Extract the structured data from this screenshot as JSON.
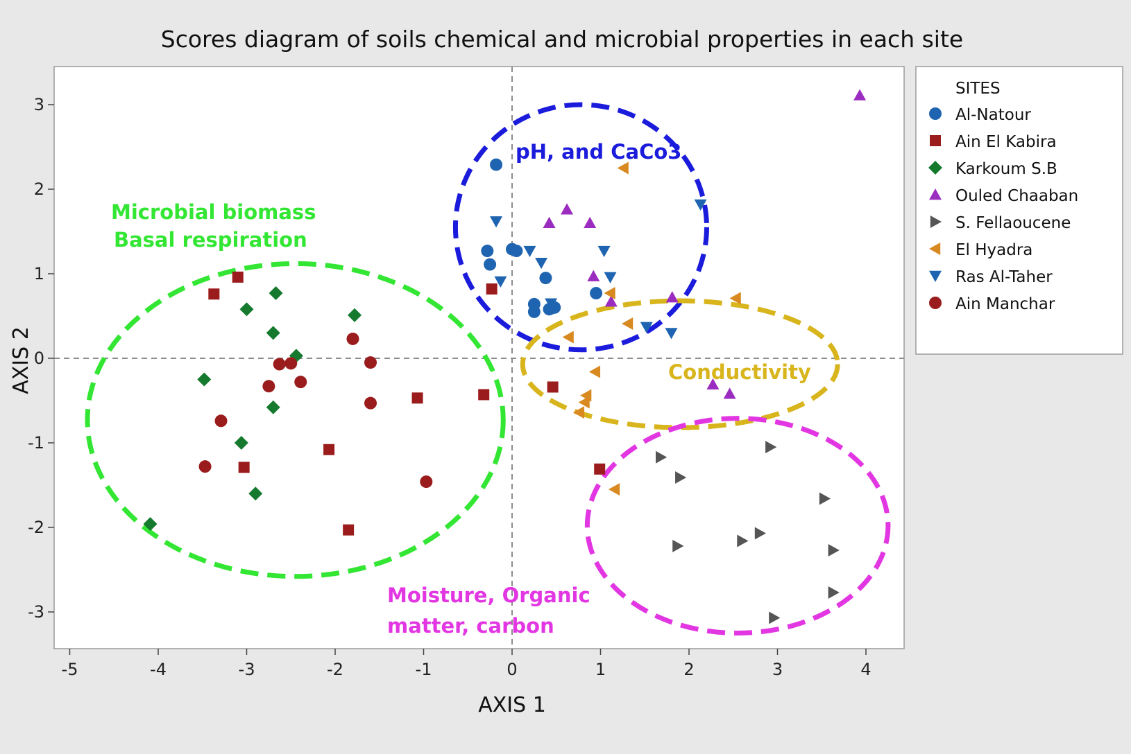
{
  "chart_data": {
    "type": "scatter",
    "title": "Scores diagram of soils chemical and microbial properties in each site",
    "xlabel": "AXIS 1",
    "ylabel": "AXIS 2",
    "xlim": [
      -5.2,
      4.4
    ],
    "ylim": [
      -3.4,
      3.45
    ],
    "xticks": [
      -5,
      -4,
      -3,
      -2,
      -1,
      0,
      1,
      2,
      3,
      4
    ],
    "yticks": [
      -3,
      -2,
      -1,
      0,
      1,
      2,
      3
    ],
    "reference_lines": {
      "x": 0,
      "y": 0,
      "style": "dashed"
    },
    "legend": {
      "title": "SITES",
      "placement": "right"
    },
    "series": [
      {
        "name": "Al-Natour",
        "marker": "circle",
        "color": "#1f64b0",
        "points": [
          [
            -0.18,
            2.29
          ],
          [
            -0.28,
            1.27
          ],
          [
            -0.25,
            1.11
          ],
          [
            0.0,
            1.29
          ],
          [
            0.05,
            1.27
          ],
          [
            0.38,
            0.95
          ],
          [
            0.25,
            0.64
          ],
          [
            0.25,
            0.55
          ],
          [
            0.42,
            0.58
          ],
          [
            0.48,
            0.6
          ],
          [
            0.95,
            0.77
          ]
        ]
      },
      {
        "name": "Ain El Kabira",
        "marker": "square",
        "color": "#9b1c1c",
        "points": [
          [
            -3.37,
            0.76
          ],
          [
            -3.1,
            0.96
          ],
          [
            -0.23,
            0.82
          ],
          [
            -0.32,
            -0.43
          ],
          [
            -1.07,
            -0.47
          ],
          [
            0.46,
            -0.34
          ],
          [
            -2.07,
            -1.08
          ],
          [
            -3.03,
            -1.29
          ],
          [
            -1.85,
            -2.03
          ],
          [
            0.99,
            -1.31
          ]
        ]
      },
      {
        "name": "Karkoum S.B",
        "marker": "diamond",
        "color": "#157a2e",
        "points": [
          [
            -2.67,
            0.77
          ],
          [
            -3.0,
            0.58
          ],
          [
            -1.78,
            0.51
          ],
          [
            -2.7,
            0.3
          ],
          [
            -2.44,
            0.03
          ],
          [
            -3.48,
            -0.25
          ],
          [
            -2.7,
            -0.58
          ],
          [
            -3.06,
            -1.0
          ],
          [
            -2.9,
            -1.6
          ],
          [
            -4.09,
            -1.96
          ]
        ]
      },
      {
        "name": "Ouled Chaaban",
        "marker": "triangle-up",
        "color": "#9b2cc0",
        "points": [
          [
            3.93,
            3.11
          ],
          [
            0.62,
            1.76
          ],
          [
            0.42,
            1.6
          ],
          [
            0.88,
            1.6
          ],
          [
            0.92,
            0.97
          ],
          [
            1.12,
            0.67
          ],
          [
            1.81,
            0.72
          ],
          [
            2.27,
            -0.31
          ],
          [
            2.46,
            -0.42
          ]
        ]
      },
      {
        "name": "S. Fellaoucene",
        "marker": "triangle-right",
        "color": "#555555",
        "points": [
          [
            1.68,
            -1.17
          ],
          [
            1.9,
            -1.41
          ],
          [
            2.92,
            -1.05
          ],
          [
            3.53,
            -1.66
          ],
          [
            1.87,
            -2.22
          ],
          [
            2.6,
            -2.16
          ],
          [
            2.8,
            -2.07
          ],
          [
            3.63,
            -2.27
          ],
          [
            3.63,
            -2.77
          ],
          [
            2.96,
            -3.07
          ]
        ]
      },
      {
        "name": "El Hyadra",
        "marker": "triangle-left",
        "color": "#d8891f",
        "points": [
          [
            1.26,
            2.25
          ],
          [
            1.11,
            0.77
          ],
          [
            2.53,
            0.71
          ],
          [
            1.31,
            0.41
          ],
          [
            0.64,
            0.25
          ],
          [
            0.94,
            -0.16
          ],
          [
            0.84,
            -0.44
          ],
          [
            0.82,
            -0.52
          ],
          [
            0.76,
            -0.64
          ],
          [
            1.16,
            -1.55
          ]
        ]
      },
      {
        "name": "Ras Al-Taher",
        "marker": "triangle-down",
        "color": "#1f64b0",
        "points": [
          [
            -0.18,
            1.62
          ],
          [
            2.13,
            1.82
          ],
          [
            0.2,
            1.27
          ],
          [
            0.33,
            1.13
          ],
          [
            1.04,
            1.27
          ],
          [
            -0.13,
            0.91
          ],
          [
            1.11,
            0.96
          ],
          [
            0.44,
            0.65
          ],
          [
            0.47,
            0.59
          ],
          [
            1.52,
            0.37
          ],
          [
            1.8,
            0.3
          ]
        ]
      },
      {
        "name": "Ain Manchar",
        "marker": "circle",
        "color": "#9b1c1c",
        "points": [
          [
            -1.8,
            0.23
          ],
          [
            -2.63,
            -0.07
          ],
          [
            -2.5,
            -0.06
          ],
          [
            -2.39,
            -0.28
          ],
          [
            -2.75,
            -0.33
          ],
          [
            -1.6,
            -0.05
          ],
          [
            -3.29,
            -0.74
          ],
          [
            -1.6,
            -0.53
          ],
          [
            -3.47,
            -1.28
          ],
          [
            -0.97,
            -1.46
          ]
        ]
      }
    ],
    "annotations": [
      {
        "text": "pH, and CaCo3",
        "color": "#1b1bdc"
      },
      {
        "text": "Microbial biomass",
        "color": "#33e633"
      },
      {
        "text": "Basal respiration",
        "color": "#33e633"
      },
      {
        "text": "Conductivity",
        "color": "#d8b51c"
      },
      {
        "text": "Moisture, Organic",
        "color": "#e236e2"
      },
      {
        "text": "matter, carbon",
        "color": "#e236e2"
      }
    ],
    "ellipses": [
      {
        "color": "#1b1bdc",
        "cx": 0.78,
        "cy": 1.55,
        "rx": 1.42,
        "ry": 1.45
      },
      {
        "color": "#33e633",
        "cx": -2.45,
        "cy": -0.73,
        "rx": 2.35,
        "ry": 1.85
      },
      {
        "color": "#d8b51c",
        "cx": 1.9,
        "cy": -0.07,
        "rx": 1.78,
        "ry": 0.75
      },
      {
        "color": "#e236e2",
        "cx": 2.55,
        "cy": -1.98,
        "rx": 1.7,
        "ry": 1.27
      }
    ]
  }
}
